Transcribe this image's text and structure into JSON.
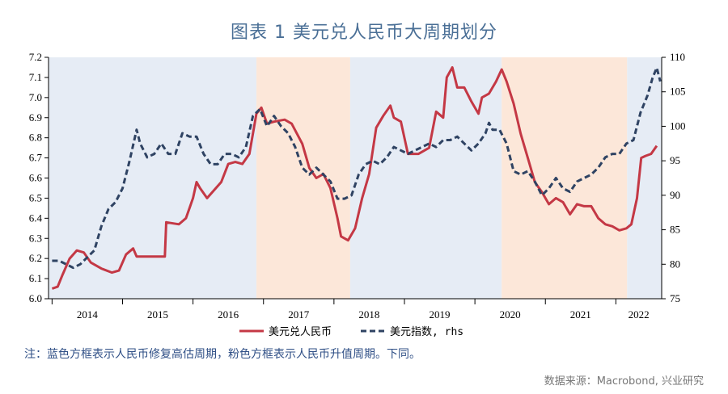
{
  "title": "图表 1 美元兑人民币大周期划分",
  "note": "注：蓝色方框表示人民币修复高估周期，粉色方框表示人民币升值周期。下同。",
  "source": "数据来源：Macrobond, 兴业研究",
  "colors": {
    "blue_band": "#e6ecf5",
    "pink_band": "#fce7d9",
    "cny_line": "#c43845",
    "dxy_line": "#2f4363",
    "axis": "#000000"
  },
  "chart_data": {
    "type": "line",
    "title": "图表 1 美元兑人民币大周期划分",
    "xlabel": "",
    "ylabel": "",
    "x_ticks": [
      "2014",
      "2015",
      "2016",
      "2017",
      "2018",
      "2019",
      "2020",
      "2021",
      "2022"
    ],
    "xlim": [
      2013.95,
      2022.65
    ],
    "ylim_left": [
      6.0,
      7.2
    ],
    "y_ticks_left": [
      "6.0",
      "6.1",
      "6.2",
      "6.3",
      "6.4",
      "6.5",
      "6.6",
      "6.7",
      "6.8",
      "6.9",
      "7.0",
      "7.1",
      "7.2"
    ],
    "ylim_right": [
      75,
      110
    ],
    "y_ticks_right": [
      "75",
      "80",
      "85",
      "90",
      "95",
      "100",
      "105",
      "110"
    ],
    "legend": [
      "美元兑人民币",
      "美元指数, rhs"
    ],
    "legend_position": "bottom-center",
    "bands": [
      {
        "color": "blue",
        "x_start": 2013.95,
        "x_end": 2016.9
      },
      {
        "color": "pink",
        "x_start": 2016.9,
        "x_end": 2018.23
      },
      {
        "color": "blue",
        "x_start": 2018.23,
        "x_end": 2020.38
      },
      {
        "color": "pink",
        "x_start": 2020.38,
        "x_end": 2022.16
      },
      {
        "color": "blue",
        "x_start": 2022.16,
        "x_end": 2022.65
      }
    ],
    "series": [
      {
        "name": "美元兑人民币",
        "axis": "left",
        "style": "solid",
        "points": [
          [
            2014.0,
            6.05
          ],
          [
            2014.08,
            6.06
          ],
          [
            2014.15,
            6.12
          ],
          [
            2014.25,
            6.2
          ],
          [
            2014.35,
            6.24
          ],
          [
            2014.45,
            6.23
          ],
          [
            2014.55,
            6.18
          ],
          [
            2014.7,
            6.15
          ],
          [
            2014.85,
            6.13
          ],
          [
            2014.95,
            6.14
          ],
          [
            2015.05,
            6.22
          ],
          [
            2015.15,
            6.25
          ],
          [
            2015.2,
            6.21
          ],
          [
            2015.35,
            6.21
          ],
          [
            2015.6,
            6.21
          ],
          [
            2015.62,
            6.38
          ],
          [
            2015.8,
            6.37
          ],
          [
            2015.9,
            6.4
          ],
          [
            2016.0,
            6.5
          ],
          [
            2016.05,
            6.58
          ],
          [
            2016.1,
            6.55
          ],
          [
            2016.2,
            6.5
          ],
          [
            2016.3,
            6.54
          ],
          [
            2016.4,
            6.58
          ],
          [
            2016.5,
            6.67
          ],
          [
            2016.6,
            6.68
          ],
          [
            2016.7,
            6.67
          ],
          [
            2016.8,
            6.72
          ],
          [
            2016.9,
            6.92
          ],
          [
            2016.97,
            6.95
          ],
          [
            2017.05,
            6.87
          ],
          [
            2017.15,
            6.88
          ],
          [
            2017.3,
            6.89
          ],
          [
            2017.4,
            6.87
          ],
          [
            2017.55,
            6.77
          ],
          [
            2017.65,
            6.65
          ],
          [
            2017.75,
            6.6
          ],
          [
            2017.85,
            6.62
          ],
          [
            2017.95,
            6.55
          ],
          [
            2018.05,
            6.4
          ],
          [
            2018.1,
            6.31
          ],
          [
            2018.2,
            6.29
          ],
          [
            2018.3,
            6.35
          ],
          [
            2018.4,
            6.5
          ],
          [
            2018.5,
            6.62
          ],
          [
            2018.6,
            6.85
          ],
          [
            2018.7,
            6.91
          ],
          [
            2018.8,
            6.96
          ],
          [
            2018.85,
            6.9
          ],
          [
            2018.95,
            6.88
          ],
          [
            2019.05,
            6.72
          ],
          [
            2019.2,
            6.72
          ],
          [
            2019.35,
            6.75
          ],
          [
            2019.45,
            6.93
          ],
          [
            2019.55,
            6.9
          ],
          [
            2019.6,
            7.1
          ],
          [
            2019.68,
            7.15
          ],
          [
            2019.75,
            7.05
          ],
          [
            2019.85,
            7.05
          ],
          [
            2019.95,
            6.98
          ],
          [
            2020.05,
            6.92
          ],
          [
            2020.1,
            7.0
          ],
          [
            2020.2,
            7.02
          ],
          [
            2020.3,
            7.08
          ],
          [
            2020.38,
            7.14
          ],
          [
            2020.45,
            7.08
          ],
          [
            2020.55,
            6.97
          ],
          [
            2020.65,
            6.82
          ],
          [
            2020.75,
            6.7
          ],
          [
            2020.85,
            6.58
          ],
          [
            2020.95,
            6.53
          ],
          [
            2021.05,
            6.47
          ],
          [
            2021.15,
            6.5
          ],
          [
            2021.25,
            6.48
          ],
          [
            2021.35,
            6.42
          ],
          [
            2021.45,
            6.47
          ],
          [
            2021.55,
            6.46
          ],
          [
            2021.65,
            6.46
          ],
          [
            2021.75,
            6.4
          ],
          [
            2021.85,
            6.37
          ],
          [
            2021.95,
            6.36
          ],
          [
            2022.05,
            6.34
          ],
          [
            2022.15,
            6.35
          ],
          [
            2022.22,
            6.37
          ],
          [
            2022.3,
            6.5
          ],
          [
            2022.36,
            6.7
          ],
          [
            2022.42,
            6.71
          ],
          [
            2022.5,
            6.72
          ],
          [
            2022.58,
            6.76
          ]
        ]
      },
      {
        "name": "美元指数, rhs",
        "axis": "right",
        "style": "dashed",
        "points": [
          [
            2014.0,
            80.5
          ],
          [
            2014.1,
            80.5
          ],
          [
            2014.2,
            80.0
          ],
          [
            2014.3,
            79.5
          ],
          [
            2014.4,
            80.0
          ],
          [
            2014.5,
            81.0
          ],
          [
            2014.6,
            82.0
          ],
          [
            2014.7,
            85.5
          ],
          [
            2014.8,
            88.0
          ],
          [
            2014.9,
            89.0
          ],
          [
            2015.0,
            91.0
          ],
          [
            2015.1,
            95.0
          ],
          [
            2015.2,
            99.5
          ],
          [
            2015.25,
            97.5
          ],
          [
            2015.35,
            95.5
          ],
          [
            2015.45,
            96.0
          ],
          [
            2015.55,
            97.5
          ],
          [
            2015.65,
            96.0
          ],
          [
            2015.75,
            96.0
          ],
          [
            2015.85,
            99.0
          ],
          [
            2015.95,
            98.5
          ],
          [
            2016.05,
            98.5
          ],
          [
            2016.15,
            96.0
          ],
          [
            2016.25,
            94.5
          ],
          [
            2016.35,
            94.5
          ],
          [
            2016.45,
            96.0
          ],
          [
            2016.55,
            96.0
          ],
          [
            2016.65,
            95.5
          ],
          [
            2016.75,
            97.0
          ],
          [
            2016.85,
            101.5
          ],
          [
            2016.95,
            102.5
          ],
          [
            2017.05,
            100.0
          ],
          [
            2017.15,
            101.5
          ],
          [
            2017.25,
            100.0
          ],
          [
            2017.35,
            99.0
          ],
          [
            2017.45,
            97.0
          ],
          [
            2017.55,
            94.0
          ],
          [
            2017.65,
            93.0
          ],
          [
            2017.75,
            94.0
          ],
          [
            2017.85,
            93.0
          ],
          [
            2017.95,
            92.0
          ],
          [
            2018.05,
            89.5
          ],
          [
            2018.15,
            89.5
          ],
          [
            2018.25,
            90.0
          ],
          [
            2018.35,
            93.0
          ],
          [
            2018.45,
            94.5
          ],
          [
            2018.55,
            95.0
          ],
          [
            2018.65,
            94.5
          ],
          [
            2018.75,
            95.5
          ],
          [
            2018.85,
            97.0
          ],
          [
            2018.95,
            96.5
          ],
          [
            2019.05,
            96.0
          ],
          [
            2019.15,
            96.5
          ],
          [
            2019.25,
            97.0
          ],
          [
            2019.35,
            97.5
          ],
          [
            2019.45,
            97.0
          ],
          [
            2019.55,
            98.0
          ],
          [
            2019.65,
            98.0
          ],
          [
            2019.75,
            98.5
          ],
          [
            2019.85,
            97.5
          ],
          [
            2019.95,
            96.5
          ],
          [
            2020.05,
            97.5
          ],
          [
            2020.15,
            99.0
          ],
          [
            2020.2,
            100.5
          ],
          [
            2020.25,
            99.5
          ],
          [
            2020.35,
            99.5
          ],
          [
            2020.45,
            97.5
          ],
          [
            2020.55,
            93.5
          ],
          [
            2020.65,
            93.0
          ],
          [
            2020.75,
            93.5
          ],
          [
            2020.85,
            92.0
          ],
          [
            2020.95,
            90.0
          ],
          [
            2021.05,
            91.0
          ],
          [
            2021.15,
            92.5
          ],
          [
            2021.25,
            91.0
          ],
          [
            2021.35,
            90.5
          ],
          [
            2021.45,
            92.0
          ],
          [
            2021.55,
            92.5
          ],
          [
            2021.65,
            93.0
          ],
          [
            2021.75,
            94.0
          ],
          [
            2021.85,
            95.5
          ],
          [
            2021.95,
            96.0
          ],
          [
            2022.05,
            96.0
          ],
          [
            2022.15,
            97.5
          ],
          [
            2022.25,
            98.0
          ],
          [
            2022.35,
            102.0
          ],
          [
            2022.45,
            104.5
          ],
          [
            2022.52,
            107.0
          ],
          [
            2022.58,
            108.5
          ],
          [
            2022.63,
            106.5
          ]
        ]
      }
    ]
  }
}
